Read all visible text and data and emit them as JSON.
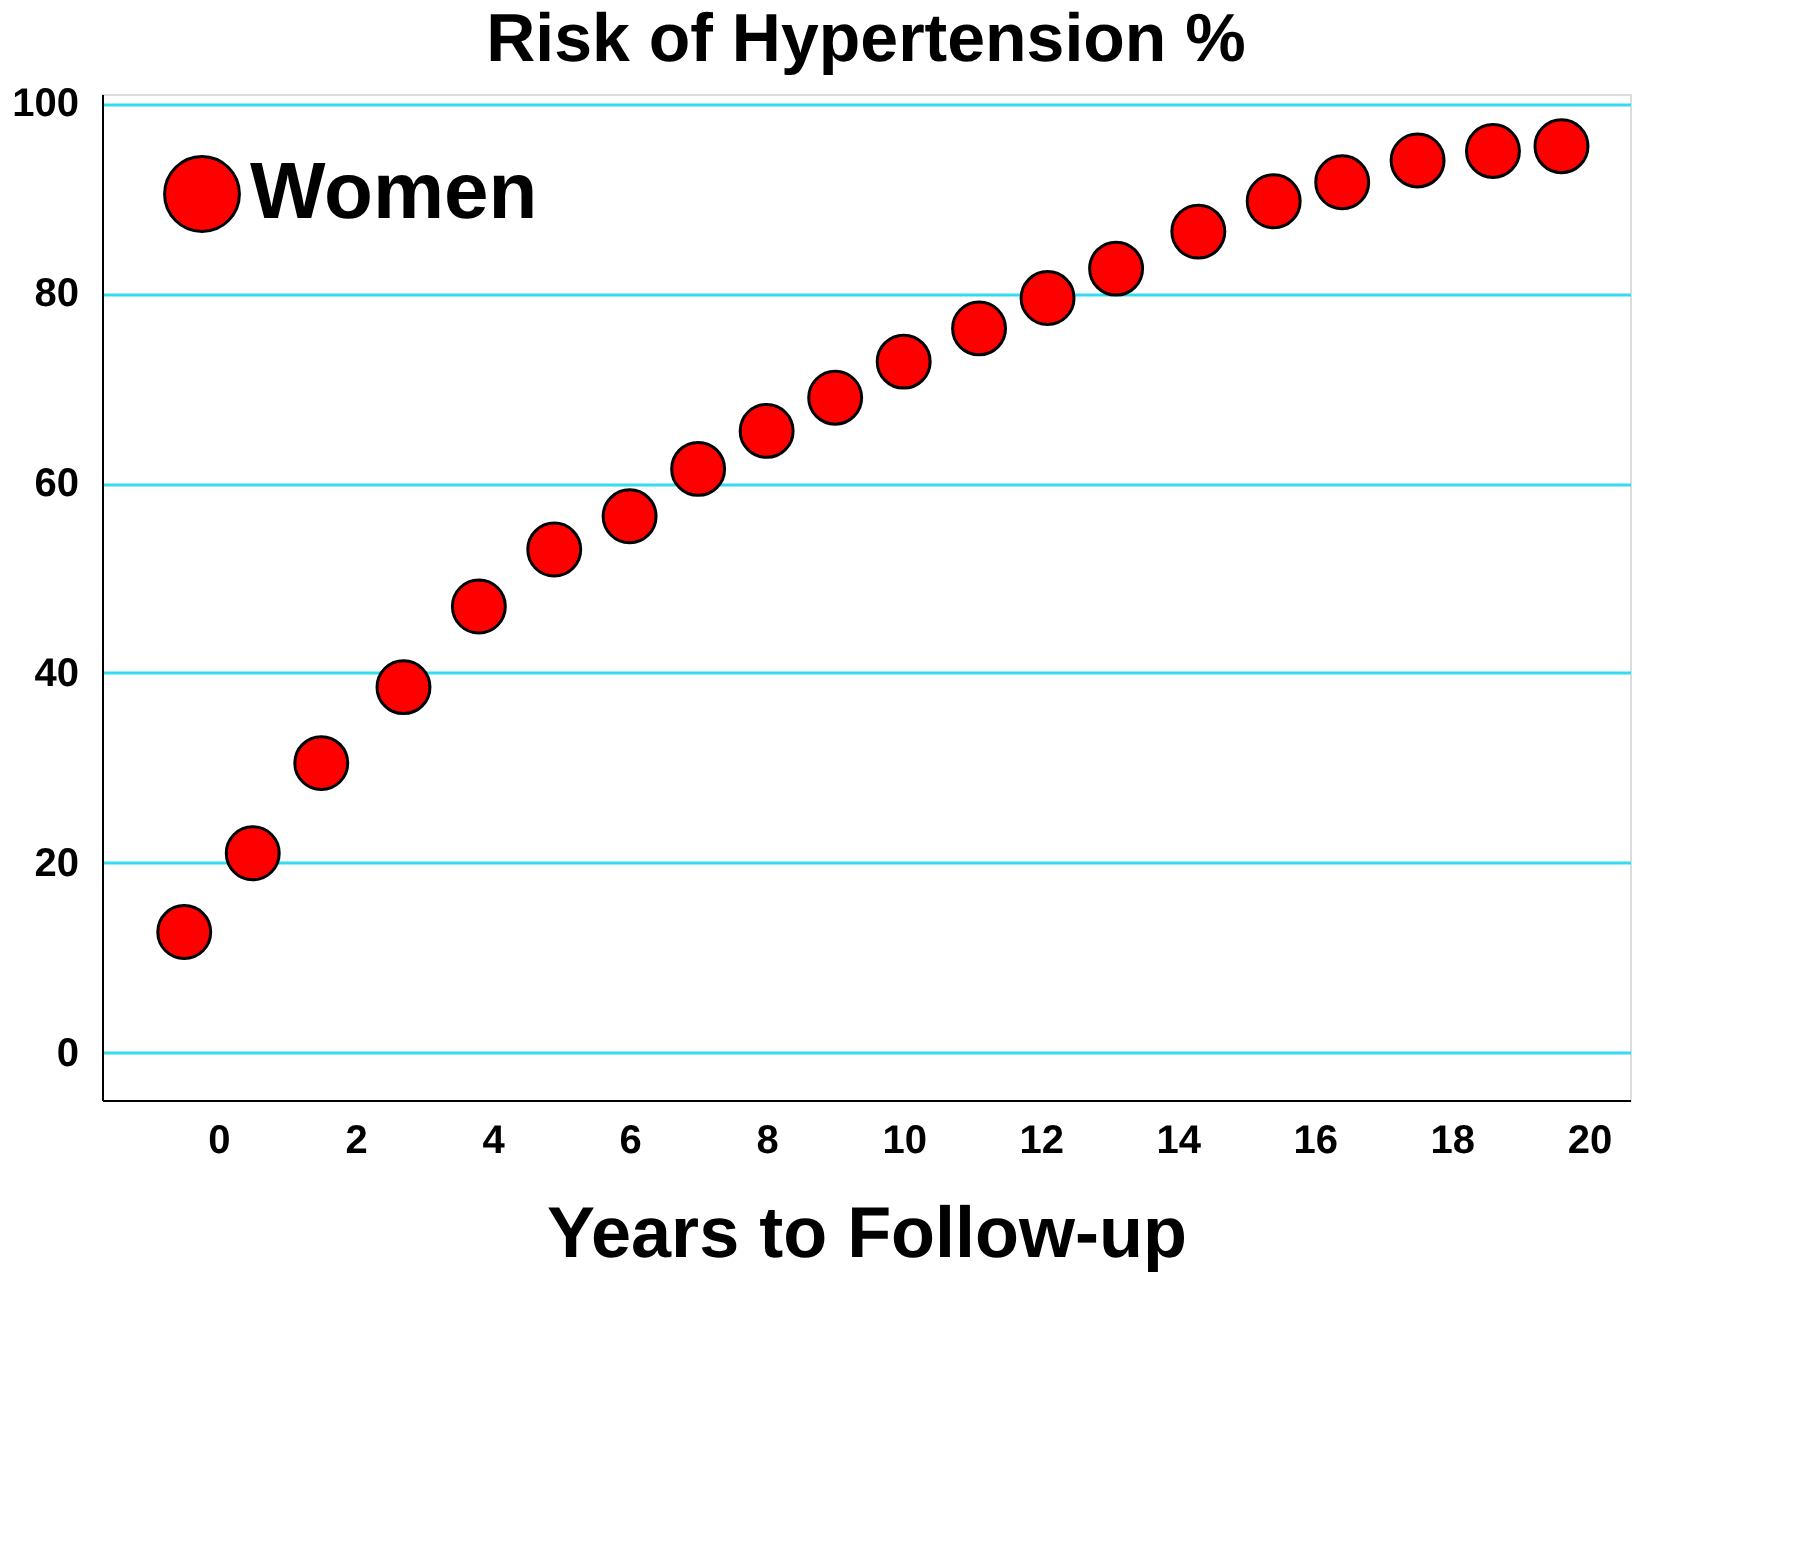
{
  "chart_data": {
    "type": "scatter",
    "title": "Risk of Hypertension %",
    "xlabel": "Years to Follow-up",
    "x": [
      -0.5,
      0.5,
      1.5,
      2.7,
      3.8,
      4.9,
      6.0,
      7.0,
      8.0,
      9.0,
      10.0,
      11.1,
      12.1,
      13.1,
      14.3,
      15.4,
      16.4,
      17.5,
      18.6,
      19.6
    ],
    "series": [
      {
        "name": "Women",
        "color": "#ff0000",
        "values": [
          12.7,
          21,
          30.5,
          38.5,
          47,
          53,
          56.5,
          61.5,
          65.5,
          69,
          72.8,
          76.3,
          79.5,
          82.6,
          86.5,
          89.7,
          91.7,
          94,
          95,
          95.5
        ]
      }
    ],
    "xlim": [
      -1.7,
      20.6
    ],
    "xticks": [
      0,
      2,
      4,
      6,
      8,
      10,
      12,
      14,
      16,
      18,
      20
    ],
    "ylim": [
      -5,
      101
    ],
    "yticks": [
      0,
      20,
      40,
      60,
      80,
      100
    ],
    "grid": "y",
    "legend": "top left",
    "marker": "circle"
  }
}
